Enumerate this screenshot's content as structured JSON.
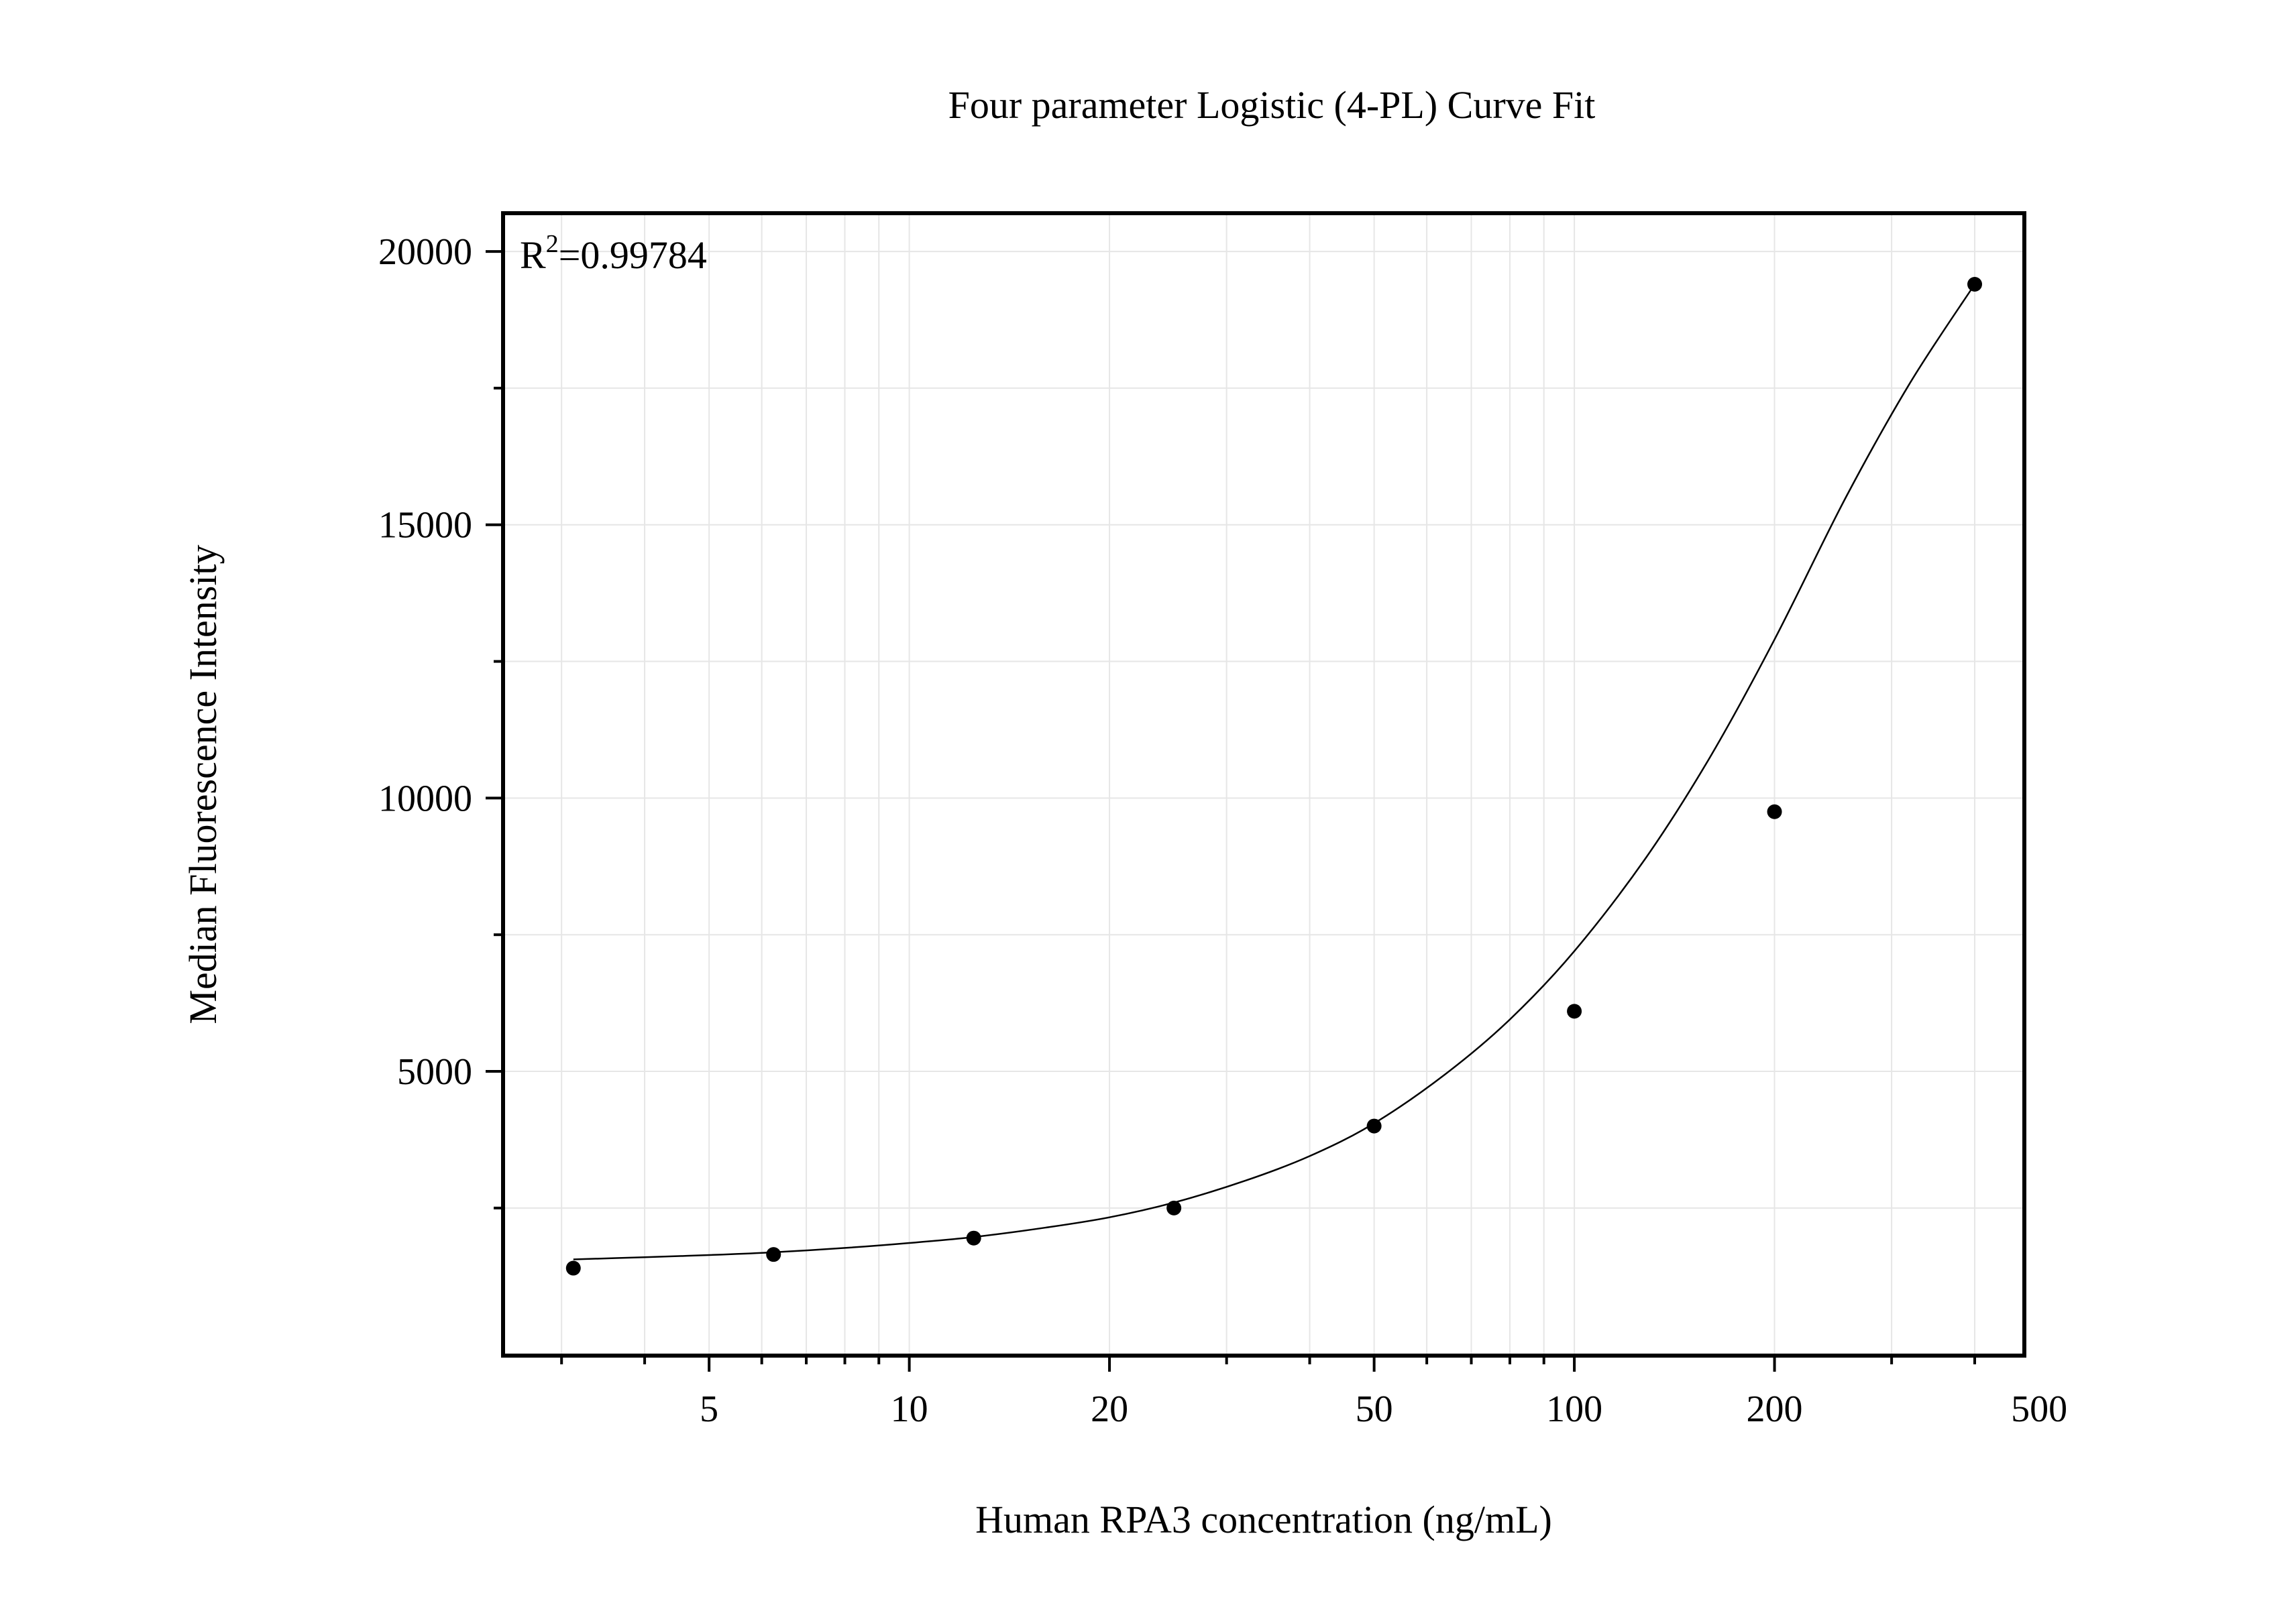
{
  "chart_data": {
    "type": "scatter",
    "title": "Four parameter Logistic (4-PL) Curve Fit",
    "xlabel": "Human RPA3 concentration (ng/mL)",
    "ylabel": "Median Fluorescence Intensity",
    "x_scale": "log",
    "xlim": [
      2.45,
      475
    ],
    "ylim": [
      -200,
      20700
    ],
    "x_ticks": [
      5,
      10,
      20,
      50,
      100,
      200,
      500
    ],
    "x_tick_labels": [
      "5",
      "10",
      "20",
      "50",
      "100",
      "200",
      "500"
    ],
    "y_ticks": [
      5000,
      10000,
      15000,
      20000
    ],
    "y_tick_labels": [
      "5000",
      "10000",
      "15000",
      "20000"
    ],
    "y_minor_ticks": [
      2500,
      7500,
      12500,
      17500
    ],
    "grid": true,
    "annotation": {
      "base": "R",
      "sup": "2",
      "rest": "=0.99784"
    },
    "series": [
      {
        "kind": "points",
        "x": [
          3.125,
          6.25,
          12.5,
          25,
          50,
          100,
          200,
          400
        ],
        "y": [
          1400,
          1650,
          1950,
          2500,
          4000,
          6100,
          9750,
          19400
        ]
      },
      {
        "kind": "fit-curve",
        "x": [
          3.125,
          4,
          5,
          6.25,
          8,
          10,
          12.5,
          16,
          20,
          25,
          32,
          40,
          50,
          64,
          80,
          100,
          128,
          160,
          200,
          256,
          320,
          400
        ],
        "y": [
          1560,
          1600,
          1640,
          1690,
          1770,
          1860,
          1970,
          2140,
          2330,
          2600,
          3000,
          3450,
          4050,
          4950,
          5950,
          7200,
          8900,
          10750,
          12900,
          15500,
          17600,
          19400
        ]
      }
    ]
  }
}
